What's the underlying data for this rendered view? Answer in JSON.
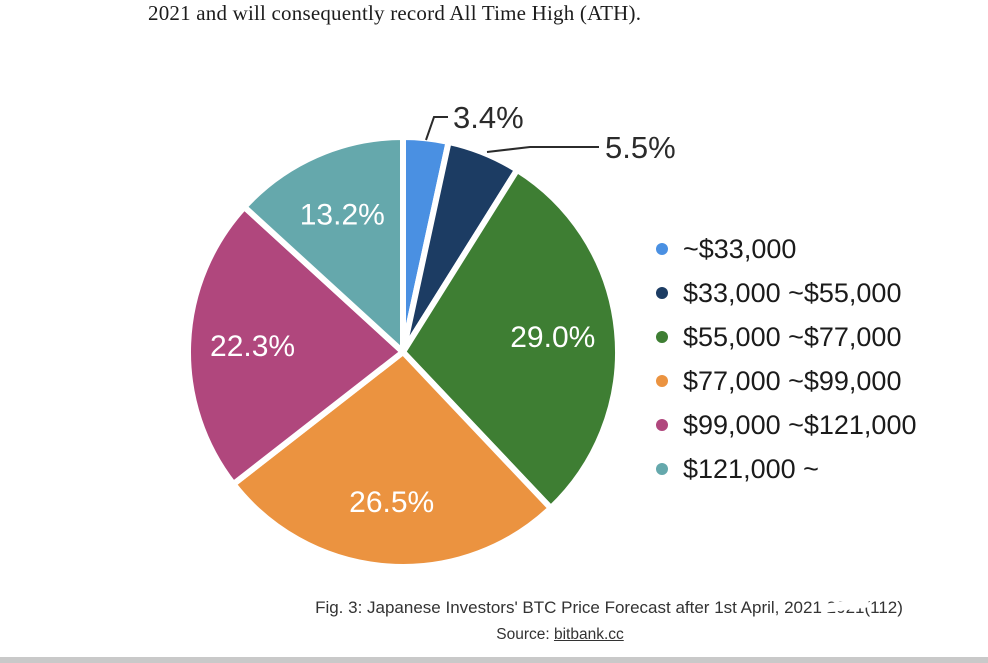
{
  "header": {
    "text": "2021 and will consequently record All Time High (ATH)."
  },
  "chart_data": {
    "type": "pie",
    "title": "Japanese Investors' BTC Price Forecast after 1st April, 2021",
    "unit": "percent",
    "legend_position": "right",
    "start_angle": "top",
    "direction": "clockwise",
    "slices": [
      {
        "label": "~$33,000",
        "value": 3.4,
        "color": "#4a90e2",
        "label_inside": false
      },
      {
        "label": "$33,000 ~$55,000",
        "value": 5.5,
        "color": "#1c3c63",
        "label_inside": false
      },
      {
        "label": "$55,000 ~$77,000",
        "value": 29.0,
        "color": "#3e7e33",
        "label_inside": true
      },
      {
        "label": "$77,000 ~$99,000",
        "value": 26.5,
        "color": "#eb9340",
        "label_inside": true
      },
      {
        "label": "$99,000 ~$121,000",
        "value": 22.3,
        "color": "#b0477d",
        "label_inside": true
      },
      {
        "label": "$121,000 ~",
        "value": 13.2,
        "color": "#65a8ac",
        "label_inside": true
      }
    ]
  },
  "caption": {
    "text": "Fig. 3: Japanese Investors' BTC Price Forecast after 1st April, 2021",
    "artifact": "2021(112)"
  },
  "source": {
    "prefix": "Source: ",
    "link": "bitbank.cc"
  }
}
